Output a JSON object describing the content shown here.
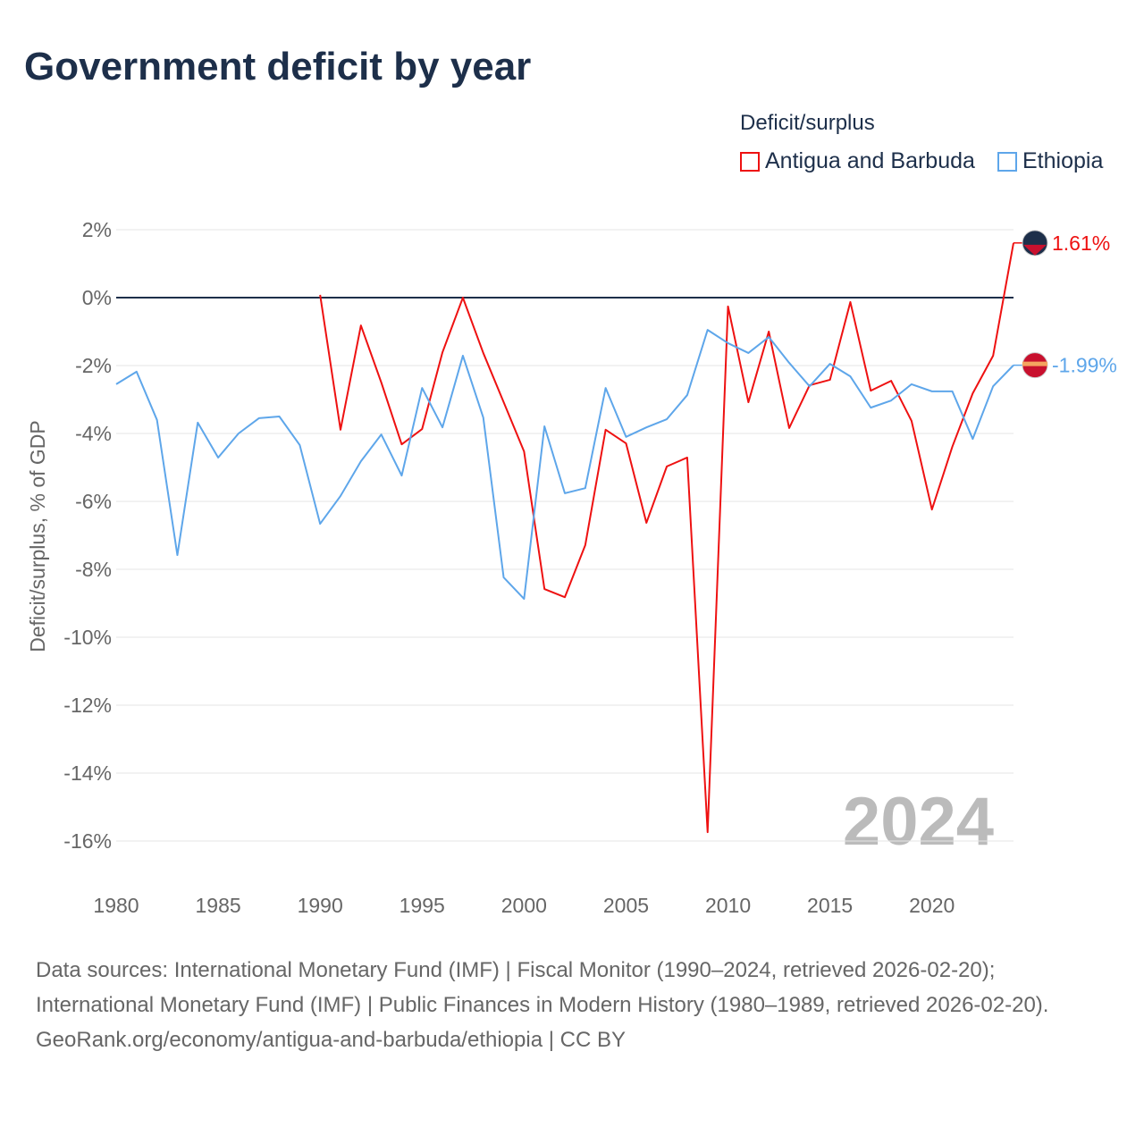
{
  "title": "Government deficit by year",
  "legend": {
    "title": "Deficit/surplus",
    "items": [
      {
        "name": "Antigua and Barbuda",
        "color": "#ee1111"
      },
      {
        "name": "Ethiopia",
        "color": "#5ea6ea"
      }
    ]
  },
  "chart_data": {
    "type": "line",
    "title": "Government deficit by year",
    "xlabel": "",
    "ylabel": "Deficit/surplus, % of GDP",
    "xlim": [
      1980,
      2024
    ],
    "ylim": [
      -16,
      2
    ],
    "x_ticks": [
      1980,
      1985,
      1990,
      1995,
      2000,
      2005,
      2010,
      2015,
      2020
    ],
    "y_ticks": [
      2,
      0,
      -2,
      -4,
      -6,
      -8,
      -10,
      -12,
      -14,
      -16
    ],
    "y_tick_labels": [
      "2%",
      "0%",
      "-2%",
      "-4%",
      "-6%",
      "-8%",
      "-10%",
      "-12%",
      "-14%",
      "-16%"
    ],
    "grid": true,
    "legend_position": "top-right",
    "year_watermark": "2024",
    "series": [
      {
        "name": "Antigua and Barbuda",
        "color": "#ee1111",
        "end_label": "1.61%",
        "x": [
          1990,
          1991,
          1992,
          1993,
          1994,
          1995,
          1996,
          1997,
          1998,
          1999,
          2000,
          2001,
          2002,
          2003,
          2004,
          2005,
          2006,
          2007,
          2008,
          2009,
          2010,
          2011,
          2012,
          2013,
          2014,
          2015,
          2016,
          2017,
          2018,
          2019,
          2020,
          2021,
          2022,
          2023,
          2024
        ],
        "values": [
          0.08,
          -3.89,
          -0.82,
          -2.5,
          -4.32,
          -3.87,
          -1.61,
          0,
          -1.63,
          -3.08,
          -4.53,
          -8.58,
          -8.82,
          -7.29,
          -3.89,
          -4.29,
          -6.63,
          -4.97,
          -4.71,
          -15.74,
          -0.26,
          -3.08,
          -1.0,
          -3.84,
          -2.58,
          -2.42,
          -0.13,
          -2.74,
          -2.45,
          -3.63,
          -6.24,
          -4.39,
          -2.82,
          -1.71,
          1.61
        ]
      },
      {
        "name": "Ethiopia",
        "color": "#5ea6ea",
        "end_label": "-1.99%",
        "x": [
          1980,
          1981,
          1982,
          1983,
          1984,
          1985,
          1986,
          1987,
          1988,
          1989,
          1990,
          1991,
          1992,
          1993,
          1994,
          1995,
          1996,
          1997,
          1998,
          1999,
          2000,
          2001,
          2002,
          2003,
          2004,
          2005,
          2006,
          2007,
          2008,
          2009,
          2010,
          2011,
          2012,
          2013,
          2014,
          2015,
          2016,
          2017,
          2018,
          2019,
          2020,
          2021,
          2022,
          2023,
          2024
        ],
        "values": [
          -2.55,
          -2.18,
          -3.6,
          -7.58,
          -3.68,
          -4.71,
          -4.0,
          -3.55,
          -3.5,
          -4.34,
          -6.66,
          -5.84,
          -4.82,
          -4.03,
          -5.24,
          -2.66,
          -3.82,
          -1.71,
          -3.53,
          -8.24,
          -8.87,
          -3.79,
          -5.76,
          -5.61,
          -2.66,
          -4.1,
          -3.82,
          -3.58,
          -2.87,
          -0.95,
          -1.34,
          -1.63,
          -1.16,
          -1.92,
          -2.61,
          -1.95,
          -2.32,
          -3.24,
          -3.03,
          -2.55,
          -2.76,
          -2.76,
          -4.16,
          -2.61,
          -1.99
        ]
      }
    ]
  },
  "footer": {
    "sources": "Data sources: International Monetary Fund (IMF) | Fiscal Monitor (1990–2024, retrieved 2026-02-20); International Monetary Fund (IMF) | Public Finances in Modern History (1980–1989, retrieved 2026-02-20).",
    "link": "GeoRank.org/economy/antigua-and-barbuda/ethiopia | CC BY"
  }
}
